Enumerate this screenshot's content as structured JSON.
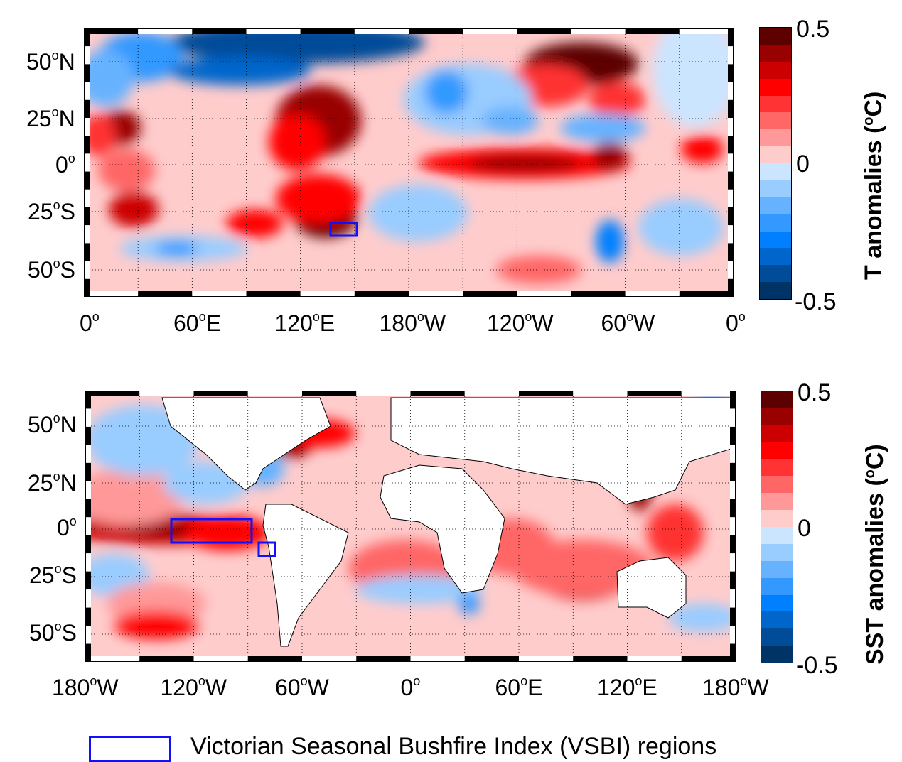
{
  "colors": {
    "scale": [
      "#5c0000",
      "#990000",
      "#cc0000",
      "#ff0000",
      "#ff3333",
      "#ff6666",
      "#ff9999",
      "#ffcccc",
      "#cce5ff",
      "#99ccff",
      "#66b2ff",
      "#3399ff",
      "#0080ff",
      "#0066cc",
      "#004c99",
      "#003366"
    ],
    "region_box": "#1010ff",
    "land": "#ffffff"
  },
  "top_map": {
    "lat_ticks": [
      [
        "50",
        "o",
        "N"
      ],
      [
        "25",
        "o",
        "N"
      ],
      [
        "0",
        "o",
        ""
      ],
      [
        "25",
        "o",
        "S"
      ],
      [
        "50",
        "o",
        "S"
      ]
    ],
    "lon_ticks": [
      [
        "0",
        "o",
        ""
      ],
      [
        "60",
        "o",
        "E"
      ],
      [
        "120",
        "o",
        "E"
      ],
      [
        "180",
        "o",
        "W"
      ],
      [
        "120",
        "o",
        "W"
      ],
      [
        "60",
        "o",
        "W"
      ],
      [
        "0",
        "o",
        ""
      ]
    ],
    "colorbar": {
      "max": "0.5",
      "mid": "0",
      "min": "-0.5",
      "title_prefix": "T anomalies (",
      "title_sup": "o",
      "title_suffix": "C)"
    }
  },
  "bottom_map": {
    "lat_ticks": [
      [
        "50",
        "o",
        "N"
      ],
      [
        "25",
        "o",
        "N"
      ],
      [
        "0",
        "o",
        ""
      ],
      [
        "25",
        "o",
        "S"
      ],
      [
        "50",
        "o",
        "S"
      ]
    ],
    "lon_ticks": [
      [
        "180",
        "o",
        "W"
      ],
      [
        "120",
        "o",
        "W"
      ],
      [
        "60",
        "o",
        "W"
      ],
      [
        "0",
        "o",
        ""
      ],
      [
        "60",
        "o",
        "E"
      ],
      [
        "120",
        "o",
        "E"
      ],
      [
        "180",
        "o",
        "W"
      ]
    ],
    "colorbar": {
      "max": "0.5",
      "mid": "0",
      "min": "-0.5",
      "title_prefix": "SST anomalies (",
      "title_sup": "o",
      "title_suffix": "C)"
    }
  },
  "legend": {
    "label": "Victorian Seasonal Bushfire Index (VSBI) regions"
  }
}
